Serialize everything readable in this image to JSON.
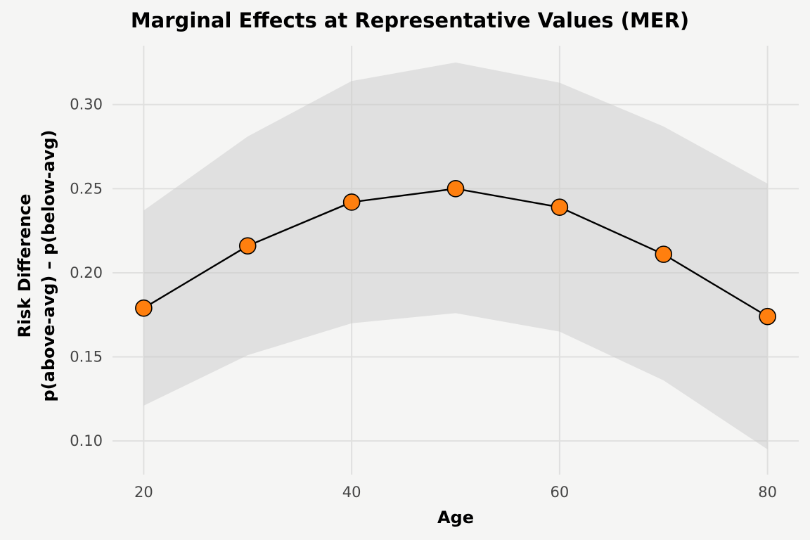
{
  "chart_data": {
    "type": "line",
    "title": "Marginal Effects at Representative Values (MER)",
    "xlabel": "Age",
    "ylabel": [
      "Risk Difference",
      "p(above-avg) – p(below-avg)"
    ],
    "xlim": [
      17,
      83
    ],
    "ylim": [
      0.08,
      0.335
    ],
    "xticks": [
      20,
      40,
      60,
      80
    ],
    "yticks": [
      0.1,
      0.15,
      0.2,
      0.25,
      0.3
    ],
    "x": [
      20,
      30,
      40,
      50,
      60,
      70,
      80
    ],
    "series": [
      {
        "values": [
          0.179,
          0.216,
          0.242,
          0.25,
          0.239,
          0.211,
          0.174
        ],
        "lower": [
          0.121,
          0.151,
          0.17,
          0.176,
          0.165,
          0.136,
          0.095
        ],
        "upper": [
          0.237,
          0.281,
          0.314,
          0.325,
          0.313,
          0.287,
          0.253
        ]
      }
    ],
    "grid": true,
    "legend": "none",
    "colors": {
      "point": "#ff7f0e",
      "line": "#000000",
      "band": "#c8c8c8",
      "grid": "#e0e0df",
      "background": "#f5f5f4"
    }
  }
}
